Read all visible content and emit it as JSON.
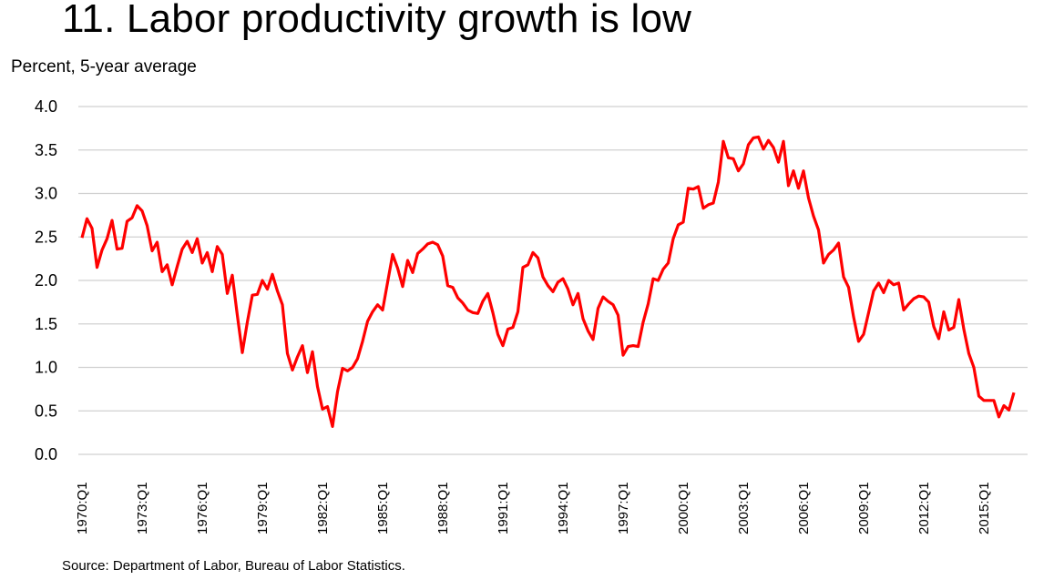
{
  "page": {
    "title": "11. Labor productivity growth is low",
    "ylabel": "Percent, 5-year average",
    "source": "Source: Department of Labor, Bureau of Labor Statistics."
  },
  "chart_data": {
    "type": "line",
    "title": "11. Labor productivity growth is low",
    "xlabel": "",
    "ylabel": "Percent, 5-year average",
    "ylim": [
      0.0,
      4.0
    ],
    "yticks": [
      "0.0",
      "0.5",
      "1.0",
      "1.5",
      "2.0",
      "2.5",
      "3.0",
      "3.5",
      "4.0"
    ],
    "xtick_labels": [
      "1970:Q1",
      "1973:Q1",
      "1976:Q1",
      "1979:Q1",
      "1982:Q1",
      "1985:Q1",
      "1988:Q1",
      "1991:Q1",
      "1994:Q1",
      "1997:Q1",
      "2000:Q1",
      "2003:Q1",
      "2006:Q1",
      "2009:Q1",
      "2012:Q1",
      "2015:Q1"
    ],
    "xtick_every_quarters": 12,
    "start": "1970:Q1",
    "end": "2016:Q3",
    "grid": "horizontal",
    "legend": "none",
    "series": [
      {
        "name": "Labor productivity growth",
        "color": "#ff0000",
        "values": [
          2.49,
          2.71,
          2.6,
          2.15,
          2.35,
          2.48,
          2.69,
          2.36,
          2.37,
          2.68,
          2.72,
          2.86,
          2.8,
          2.63,
          2.34,
          2.44,
          2.1,
          2.18,
          1.95,
          2.16,
          2.36,
          2.45,
          2.32,
          2.48,
          2.2,
          2.32,
          2.1,
          2.39,
          2.3,
          1.85,
          2.06,
          1.6,
          1.17,
          1.52,
          1.83,
          1.84,
          2.0,
          1.9,
          2.07,
          1.88,
          1.72,
          1.16,
          0.97,
          1.12,
          1.25,
          0.94,
          1.18,
          0.78,
          0.52,
          0.55,
          0.32,
          0.72,
          0.99,
          0.96,
          1.0,
          1.1,
          1.3,
          1.53,
          1.64,
          1.72,
          1.66,
          1.98,
          2.3,
          2.14,
          1.93,
          2.23,
          2.09,
          2.31,
          2.36,
          2.42,
          2.44,
          2.41,
          2.28,
          1.94,
          1.92,
          1.8,
          1.74,
          1.66,
          1.63,
          1.62,
          1.76,
          1.85,
          1.63,
          1.38,
          1.25,
          1.44,
          1.46,
          1.64,
          2.15,
          2.18,
          2.32,
          2.26,
          2.04,
          1.94,
          1.87,
          1.98,
          2.02,
          1.9,
          1.72,
          1.85,
          1.56,
          1.42,
          1.32,
          1.68,
          1.81,
          1.76,
          1.72,
          1.6,
          1.14,
          1.24,
          1.25,
          1.24,
          1.52,
          1.73,
          2.02,
          2.0,
          2.13,
          2.2,
          2.48,
          2.64,
          2.67,
          3.06,
          3.05,
          3.08,
          2.83,
          2.87,
          2.89,
          3.13,
          3.6,
          3.41,
          3.4,
          3.26,
          3.34,
          3.56,
          3.64,
          3.65,
          3.51,
          3.61,
          3.53,
          3.36,
          3.6,
          3.09,
          3.26,
          3.06,
          3.26,
          2.95,
          2.74,
          2.58,
          2.2,
          2.3,
          2.35,
          2.43,
          2.04,
          1.92,
          1.58,
          1.3,
          1.38,
          1.63,
          1.88,
          1.97,
          1.86,
          2.0,
          1.95,
          1.97,
          1.66,
          1.73,
          1.79,
          1.82,
          1.81,
          1.75,
          1.47,
          1.33,
          1.64,
          1.43,
          1.46,
          1.78,
          1.44,
          1.16,
          1.0,
          0.67,
          0.62,
          0.62,
          0.62,
          0.43,
          0.56,
          0.51,
          0.71
        ]
      }
    ]
  }
}
